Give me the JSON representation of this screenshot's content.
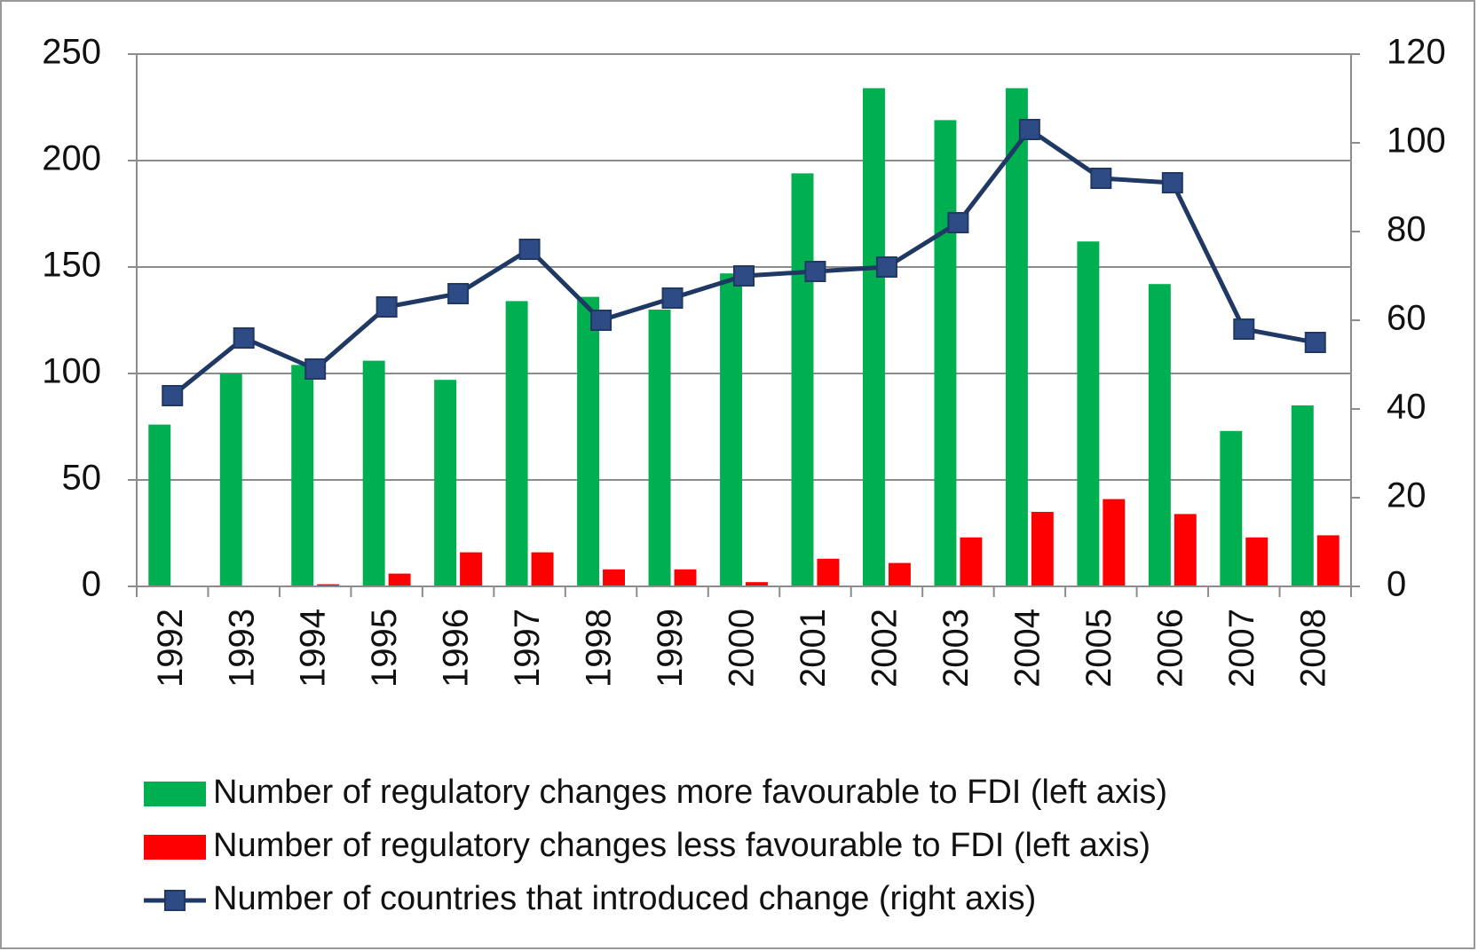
{
  "chart_data": {
    "type": "bar",
    "categories": [
      "1992",
      "1993",
      "1994",
      "1995",
      "1996",
      "1997",
      "1998",
      "1999",
      "2000",
      "2001",
      "2002",
      "2003",
      "2004",
      "2005",
      "2006",
      "2007",
      "2008"
    ],
    "series": [
      {
        "name": "Number of regulatory changes more favourable to FDI (left axis)",
        "type": "bar",
        "color": "#00b050",
        "values": [
          76,
          100,
          104,
          106,
          97,
          134,
          136,
          130,
          147,
          194,
          234,
          219,
          234,
          162,
          142,
          73,
          85
        ]
      },
      {
        "name": "Number of regulatory changes less favourable to FDI (left axis)",
        "type": "bar",
        "color": "#ff0000",
        "values": [
          0,
          0,
          1,
          6,
          16,
          16,
          8,
          8,
          2,
          13,
          11,
          23,
          35,
          41,
          34,
          23,
          24
        ]
      },
      {
        "name": "Number of countries that introduced change (right axis)",
        "type": "line",
        "axis": "y2",
        "color": "#1f3864",
        "marker_color": "#2f4b85",
        "values": [
          43,
          56,
          49,
          63,
          66,
          76,
          60,
          65,
          70,
          71,
          72,
          82,
          103,
          92,
          91,
          58,
          55
        ]
      }
    ],
    "ylim": [
      0,
      250
    ],
    "yticks": [
      0,
      50,
      100,
      150,
      200,
      250
    ],
    "y2lim": [
      0,
      120
    ],
    "y2ticks": [
      0,
      20,
      40,
      60,
      80,
      100,
      120
    ],
    "grid": true,
    "legend": "bottom"
  }
}
